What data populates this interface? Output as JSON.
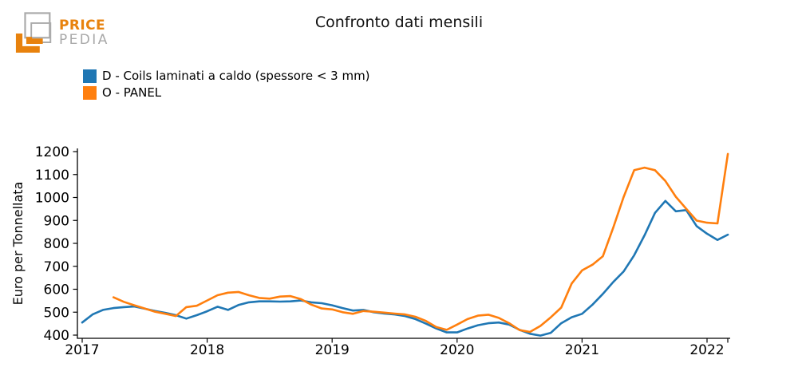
{
  "logo": {
    "brand_top": "PRICE",
    "brand_bottom": "PEDIA",
    "orange": "#E8820D",
    "gray": "#A9A9A9"
  },
  "chart_data": {
    "type": "line",
    "title": "Confronto dati mensili",
    "xlabel": "",
    "ylabel": "Euro per Tonnellata",
    "x_unit": "month",
    "x_range": [
      "2017-01",
      "2022-03"
    ],
    "ylim": [
      386,
      1214
    ],
    "y_ticks": [
      400,
      500,
      600,
      700,
      800,
      900,
      1000,
      1100,
      1200
    ],
    "x_tick_labels": [
      "2017",
      "2018",
      "2019",
      "2020",
      "2021",
      "2022"
    ],
    "grid": false,
    "legend_position": "top-left",
    "series": [
      {
        "name": "D - Coils laminati a caldo (spessore < 3 mm)",
        "color": "#1f77b4",
        "start": "2017-01",
        "values": [
          455,
          490,
          510,
          518,
          522,
          525,
          515,
          505,
          497,
          487,
          472,
          487,
          504,
          524,
          510,
          531,
          543,
          547,
          547,
          546,
          547,
          551,
          543,
          539,
          530,
          518,
          507,
          510,
          500,
          494,
          490,
          483,
          470,
          450,
          429,
          412,
          412,
          429,
          443,
          452,
          455,
          446,
          423,
          406,
          398,
          410,
          452,
          478,
          493,
          533,
          580,
          632,
          678,
          748,
          835,
          933,
          985,
          940,
          945,
          875,
          842,
          815,
          838
        ]
      },
      {
        "name": "O - PANEL",
        "color": "#ff7f0e",
        "start": "2017-04",
        "values": [
          565,
          545,
          530,
          516,
          502,
          493,
          483,
          522,
          528,
          551,
          574,
          585,
          588,
          574,
          562,
          559,
          568,
          570,
          557,
          533,
          516,
          512,
          500,
          493,
          505,
          502,
          498,
          494,
          490,
          480,
          462,
          435,
          423,
          446,
          470,
          485,
          489,
          475,
          452,
          422,
          414,
          440,
          478,
          520,
          625,
          682,
          707,
          744,
          870,
          1003,
          1119,
          1130,
          1119,
          1072,
          1003,
          951,
          899,
          890,
          887,
          1190
        ]
      }
    ]
  }
}
